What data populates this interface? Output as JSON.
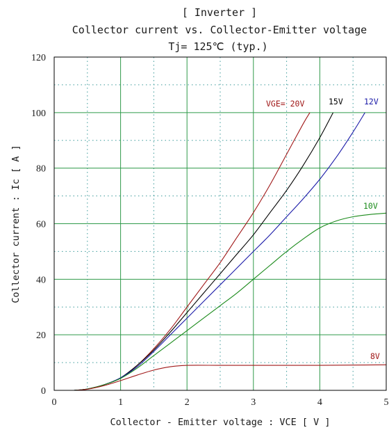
{
  "chart_data": {
    "type": "line",
    "title_lines": [
      "[ Inverter ]",
      "Collector current  vs.  Collector-Emitter voltage",
      "Tj= 125℃    (typ.)"
    ],
    "xlabel": "Collector - Emitter voltage  :  VCE  [ V ]",
    "ylabel": "Collector current  :  Ic  [ A ]",
    "xlim": [
      0,
      5
    ],
    "ylim": [
      0,
      120
    ],
    "x_ticks": [
      "0",
      "1",
      "2",
      "3",
      "4",
      "5"
    ],
    "y_ticks": [
      "0",
      "20",
      "40",
      "60",
      "80",
      "100",
      "120"
    ],
    "grid": true,
    "series": [
      {
        "name": "VGE= 20V",
        "color": "#a01818",
        "x": [
          0.3,
          0.5,
          0.75,
          1.0,
          1.25,
          1.5,
          1.75,
          2.0,
          2.25,
          2.5,
          2.75,
          3.0,
          3.25,
          3.5,
          3.75,
          3.85
        ],
        "y": [
          0,
          0.5,
          2,
          4.5,
          9,
          15,
          22,
          30,
          38,
          46,
          55,
          64,
          74,
          85,
          96,
          100
        ]
      },
      {
        "name": "15V",
        "color": "#000000",
        "x": [
          0.3,
          0.5,
          0.75,
          1.0,
          1.25,
          1.5,
          1.75,
          2.0,
          2.25,
          2.5,
          2.75,
          3.0,
          3.25,
          3.5,
          3.75,
          4.0,
          4.2
        ],
        "y": [
          0,
          0.5,
          2,
          4.5,
          9,
          14.5,
          21,
          28,
          35,
          42,
          49,
          56,
          64,
          72,
          81,
          91,
          100
        ]
      },
      {
        "name": "12V",
        "color": "#1a1aa8",
        "x": [
          0.3,
          0.5,
          0.75,
          1.0,
          1.25,
          1.5,
          1.75,
          2.0,
          2.25,
          2.5,
          2.75,
          3.0,
          3.25,
          3.5,
          3.75,
          4.0,
          4.25,
          4.5,
          4.68
        ],
        "y": [
          0,
          0.5,
          2,
          4.5,
          8.5,
          14,
          20,
          26,
          32,
          38,
          44,
          50,
          56,
          62.5,
          69,
          76,
          84,
          93,
          100
        ]
      },
      {
        "name": "10V",
        "color": "#1a8a1a",
        "x": [
          0.3,
          0.5,
          0.75,
          1.0,
          1.25,
          1.5,
          1.75,
          2.0,
          2.25,
          2.5,
          2.75,
          3.0,
          3.25,
          3.5,
          3.75,
          4.0,
          4.25,
          4.5,
          4.75,
          5.0
        ],
        "y": [
          0,
          0.5,
          2,
          4.3,
          8,
          12.5,
          17,
          21.5,
          26,
          30.5,
          35,
          40,
          45,
          50,
          54.5,
          58.5,
          61,
          62.5,
          63.3,
          63.8
        ]
      },
      {
        "name": "8V",
        "color": "#a01818",
        "x": [
          0.3,
          0.5,
          0.75,
          1.0,
          1.25,
          1.5,
          1.75,
          2.0,
          2.5,
          3.0,
          3.5,
          4.0,
          4.5,
          5.0
        ],
        "y": [
          0,
          0.4,
          1.7,
          3.5,
          5.5,
          7.3,
          8.5,
          9,
          9,
          9,
          9,
          9,
          9.1,
          9.2
        ]
      }
    ]
  }
}
